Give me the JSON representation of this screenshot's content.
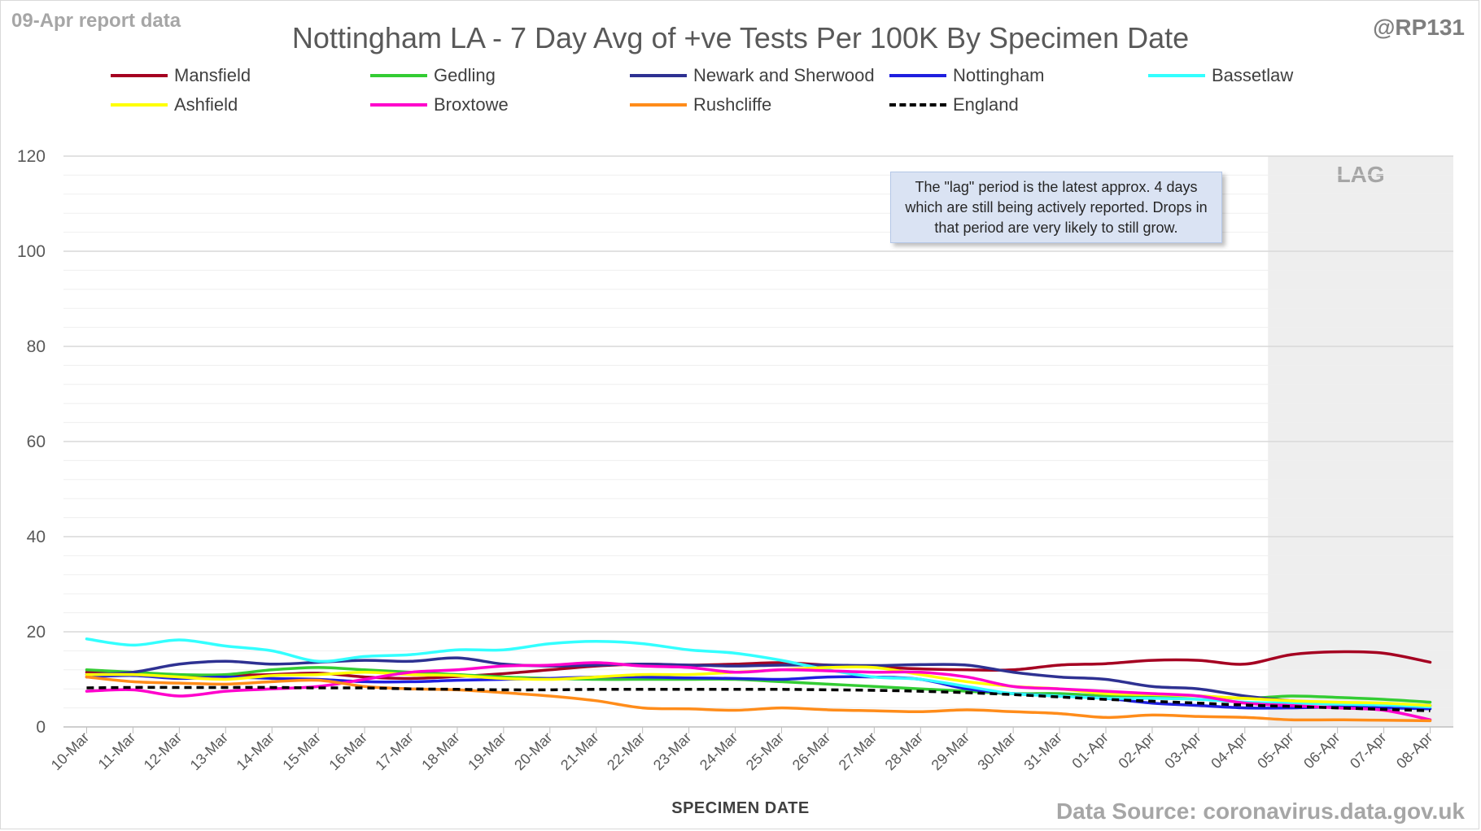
{
  "header": {
    "report_label": "09-Apr report data",
    "handle": "@RP131",
    "source": "Data Source: coronavirus.data.gov.uk"
  },
  "note_text": "The \"lag\" period is the latest approx. 4 days which are still being actively reported.  Drops in that period are very likely to still grow.",
  "lag_label": "LAG",
  "chart_data": {
    "type": "line",
    "title": "Nottingham LA - 7 Day Avg of +ve Tests Per 100K By Specimen Date",
    "xlabel": "SPECIMEN DATE",
    "ylabel": "",
    "ylim": [
      0,
      120
    ],
    "yticks": [
      0,
      20,
      40,
      60,
      80,
      100,
      120
    ],
    "grid": true,
    "legend_position": "top",
    "lag_period": [
      "05-Apr",
      "08-Apr"
    ],
    "x": [
      "10-Mar",
      "11-Mar",
      "12-Mar",
      "13-Mar",
      "14-Mar",
      "15-Mar",
      "16-Mar",
      "17-Mar",
      "18-Mar",
      "19-Mar",
      "20-Mar",
      "21-Mar",
      "22-Mar",
      "23-Mar",
      "24-Mar",
      "25-Mar",
      "26-Mar",
      "27-Mar",
      "28-Mar",
      "29-Mar",
      "30-Mar",
      "31-Mar",
      "01-Apr",
      "02-Apr",
      "03-Apr",
      "04-Apr",
      "05-Apr",
      "06-Apr",
      "07-Apr",
      "08-Apr"
    ],
    "series": [
      {
        "name": "Mansfield",
        "color": "#a50021",
        "dash": false,
        "values": [
          11.5,
          11.0,
          10.5,
          10.8,
          11.0,
          11.3,
          10.5,
          10.2,
          10.6,
          11.2,
          12.0,
          12.8,
          13.2,
          13.0,
          13.2,
          13.5,
          13.0,
          12.6,
          12.2,
          12.0,
          12.0,
          13.0,
          13.3,
          14.0,
          14.0,
          13.2,
          15.2,
          15.8,
          15.5,
          13.6
        ]
      },
      {
        "name": "Gedling",
        "color": "#33cc33",
        "dash": false,
        "values": [
          12.0,
          11.5,
          11.0,
          11.0,
          12.0,
          12.5,
          12.0,
          11.5,
          11.0,
          10.5,
          10.2,
          10.0,
          10.0,
          10.0,
          10.0,
          9.5,
          9.0,
          8.5,
          8.0,
          7.5,
          7.0,
          7.0,
          6.5,
          6.5,
          6.5,
          6.0,
          6.5,
          6.2,
          5.8,
          5.2
        ]
      },
      {
        "name": "Newark and Sherwood",
        "color": "#2e3192",
        "dash": false,
        "values": [
          11.0,
          11.5,
          13.2,
          13.8,
          13.2,
          13.6,
          14.0,
          13.8,
          14.5,
          13.2,
          12.8,
          13.0,
          13.2,
          13.0,
          12.8,
          13.0,
          13.0,
          12.9,
          13.1,
          13.0,
          11.5,
          10.5,
          10.0,
          8.5,
          8.0,
          6.5,
          5.5,
          5.0,
          4.8,
          4.5
        ]
      },
      {
        "name": "Nottingham",
        "color": "#1f1fdf",
        "dash": false,
        "values": [
          10.5,
          10.8,
          10.2,
          10.5,
          10.2,
          10.0,
          9.5,
          9.5,
          9.8,
          10.0,
          10.2,
          10.5,
          10.5,
          10.3,
          10.2,
          10.0,
          10.5,
          10.5,
          10.0,
          8.0,
          7.0,
          6.5,
          6.0,
          5.0,
          4.5,
          4.0,
          4.0,
          4.2,
          4.0,
          3.8
        ]
      },
      {
        "name": "Bassetlaw",
        "color": "#33ffff",
        "dash": false,
        "values": [
          18.5,
          17.2,
          18.3,
          17.0,
          16.0,
          13.8,
          14.8,
          15.2,
          16.2,
          16.2,
          17.5,
          18.0,
          17.5,
          16.2,
          15.5,
          14.0,
          12.0,
          10.5,
          10.0,
          8.5,
          7.0,
          6.5,
          6.0,
          6.0,
          5.8,
          5.2,
          5.0,
          4.8,
          4.6,
          4.2
        ]
      },
      {
        "name": "Ashfield",
        "color": "#ffff00",
        "dash": false,
        "values": [
          11.0,
          11.0,
          10.5,
          10.0,
          10.8,
          11.0,
          11.5,
          11.0,
          10.8,
          10.2,
          10.0,
          10.5,
          11.0,
          11.0,
          11.5,
          12.0,
          12.5,
          12.5,
          11.0,
          9.5,
          8.5,
          8.0,
          7.0,
          6.8,
          6.5,
          6.0,
          5.5,
          5.2,
          5.0,
          4.5
        ]
      },
      {
        "name": "Broxtowe",
        "color": "#ff00cc",
        "dash": false,
        "values": [
          7.5,
          7.8,
          6.5,
          7.5,
          8.0,
          8.5,
          10.0,
          11.5,
          12.0,
          12.8,
          13.0,
          13.5,
          12.8,
          12.5,
          11.5,
          12.0,
          11.8,
          11.5,
          11.5,
          10.5,
          8.5,
          8.0,
          7.5,
          7.0,
          6.5,
          5.0,
          4.5,
          4.0,
          3.5,
          1.5
        ]
      },
      {
        "name": "Rushcliffe",
        "color": "#ff8c1a",
        "dash": false,
        "values": [
          10.5,
          9.5,
          9.2,
          9.0,
          9.5,
          9.8,
          8.5,
          8.0,
          7.8,
          7.2,
          6.5,
          5.5,
          4.0,
          3.8,
          3.5,
          4.0,
          3.6,
          3.4,
          3.2,
          3.6,
          3.2,
          2.8,
          2.0,
          2.5,
          2.2,
          2.0,
          1.5,
          1.5,
          1.4,
          1.3
        ]
      },
      {
        "name": "England",
        "color": "#000000",
        "dash": true,
        "values": [
          8.2,
          8.3,
          8.3,
          8.3,
          8.3,
          8.2,
          8.2,
          8.0,
          7.9,
          7.8,
          7.8,
          7.9,
          7.9,
          7.9,
          7.9,
          7.9,
          7.8,
          7.7,
          7.5,
          7.2,
          6.8,
          6.3,
          5.8,
          5.4,
          5.0,
          4.6,
          4.3,
          4.0,
          3.7,
          3.4
        ]
      }
    ]
  }
}
